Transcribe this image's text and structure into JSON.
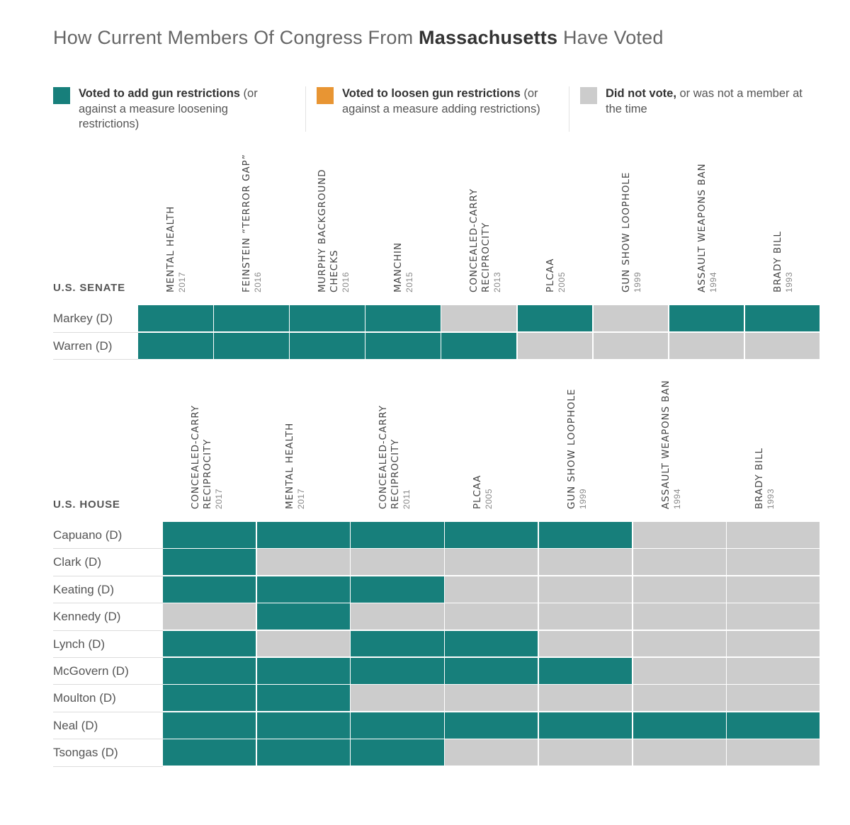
{
  "title": {
    "prefix": "How Current Members Of Congress From",
    "state": "Massachusetts",
    "suffix": "Have Voted"
  },
  "colors": {
    "add": "#177f7b",
    "loosen": "#e89533",
    "none": "#cccccc"
  },
  "legend": [
    {
      "key": "add",
      "bold": "Voted to add gun restrictions",
      "rest": " (or against a measure loosening restrictions)"
    },
    {
      "key": "loosen",
      "bold": "Voted to loosen gun restrictions",
      "rest": " (or against a measure adding restrictions)"
    },
    {
      "key": "none",
      "bold": "Did not vote,",
      "rest": " or was not a member at the time"
    }
  ],
  "chart_data": [
    {
      "type": "heatmap",
      "title": "U.S. SENATE",
      "columns": [
        {
          "name": "MENTAL HEALTH",
          "year": "2017"
        },
        {
          "name": "FEINSTEIN “TERROR GAP”",
          "year": "2016"
        },
        {
          "name": "MURPHY BACKGROUND CHECKS",
          "year": "2016"
        },
        {
          "name": "MANCHIN",
          "year": "2015"
        },
        {
          "name": "CONCEALED-CARRY RECIPROCITY",
          "year": "2013"
        },
        {
          "name": "PLCAA",
          "year": "2005"
        },
        {
          "name": "GUN SHOW LOOPHOLE",
          "year": "1999"
        },
        {
          "name": "ASSAULT WEAPONS BAN",
          "year": "1994"
        },
        {
          "name": "BRADY BILL",
          "year": "1993"
        }
      ],
      "rows": [
        {
          "member": "Markey (D)",
          "votes": [
            "add",
            "add",
            "add",
            "add",
            "none",
            "add",
            "none",
            "add",
            "add"
          ]
        },
        {
          "member": "Warren (D)",
          "votes": [
            "add",
            "add",
            "add",
            "add",
            "add",
            "none",
            "none",
            "none",
            "none"
          ]
        }
      ]
    },
    {
      "type": "heatmap",
      "title": "U.S. HOUSE",
      "columns": [
        {
          "name": "CONCEALED-CARRY RECIPROCITY",
          "year": "2017"
        },
        {
          "name": "MENTAL HEALTH",
          "year": "2017"
        },
        {
          "name": "CONCEALED-CARRY RECIPROCITY",
          "year": "2011"
        },
        {
          "name": "PLCAA",
          "year": "2005"
        },
        {
          "name": "GUN SHOW LOOPHOLE",
          "year": "1999"
        },
        {
          "name": "ASSAULT WEAPONS BAN",
          "year": "1994"
        },
        {
          "name": "BRADY BILL",
          "year": "1993"
        }
      ],
      "rows": [
        {
          "member": "Capuano (D)",
          "votes": [
            "add",
            "add",
            "add",
            "add",
            "add",
            "none",
            "none"
          ]
        },
        {
          "member": "Clark (D)",
          "votes": [
            "add",
            "none",
            "none",
            "none",
            "none",
            "none",
            "none"
          ]
        },
        {
          "member": "Keating (D)",
          "votes": [
            "add",
            "add",
            "add",
            "none",
            "none",
            "none",
            "none"
          ]
        },
        {
          "member": "Kennedy (D)",
          "votes": [
            "none",
            "add",
            "none",
            "none",
            "none",
            "none",
            "none"
          ]
        },
        {
          "member": "Lynch (D)",
          "votes": [
            "add",
            "none",
            "add",
            "add",
            "none",
            "none",
            "none"
          ]
        },
        {
          "member": "McGovern (D)",
          "votes": [
            "add",
            "add",
            "add",
            "add",
            "add",
            "none",
            "none"
          ]
        },
        {
          "member": "Moulton (D)",
          "votes": [
            "add",
            "add",
            "none",
            "none",
            "none",
            "none",
            "none"
          ]
        },
        {
          "member": "Neal (D)",
          "votes": [
            "add",
            "add",
            "add",
            "add",
            "add",
            "add",
            "add"
          ]
        },
        {
          "member": "Tsongas (D)",
          "votes": [
            "add",
            "add",
            "add",
            "none",
            "none",
            "none",
            "none"
          ]
        }
      ]
    }
  ]
}
